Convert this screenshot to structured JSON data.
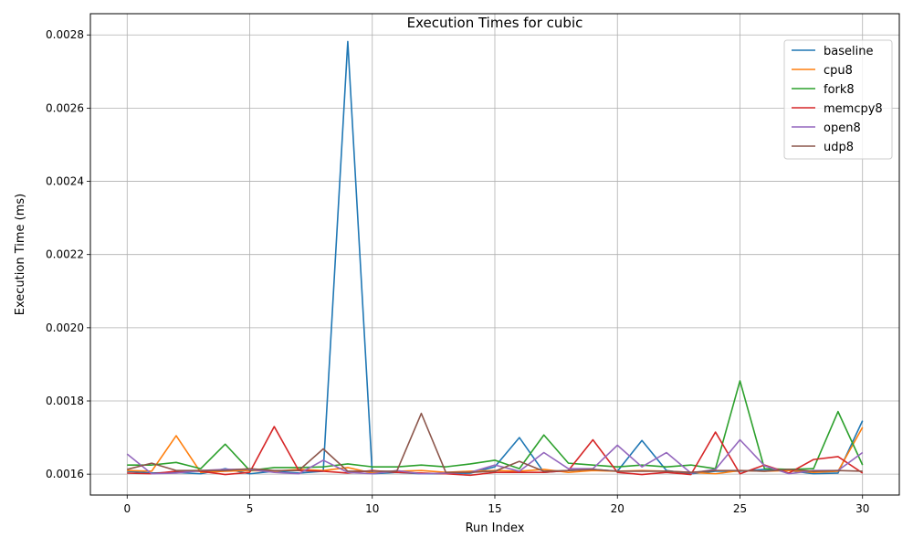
{
  "chart_data": {
    "type": "line",
    "title": "Execution Times for cubic",
    "xlabel": "Run Index",
    "ylabel": "Execution Time (ms)",
    "xlim": [
      -1.5,
      31.5
    ],
    "ylim": [
      0.001543,
      0.002858
    ],
    "xticks": [
      0,
      5,
      10,
      15,
      20,
      25,
      30
    ],
    "xtick_labels": [
      "0",
      "5",
      "10",
      "15",
      "20",
      "25",
      "30"
    ],
    "yticks": [
      0.0016,
      0.0018,
      0.002,
      0.0022,
      0.0024,
      0.0026,
      0.0028
    ],
    "ytick_labels": [
      "0.0016",
      "0.0018",
      "0.0020",
      "0.0022",
      "0.0024",
      "0.0026",
      "0.0028"
    ],
    "grid": true,
    "legend_position": "top-right",
    "x": [
      0,
      1,
      2,
      3,
      4,
      5,
      6,
      7,
      8,
      9,
      10,
      11,
      12,
      13,
      14,
      15,
      16,
      17,
      18,
      19,
      20,
      21,
      22,
      23,
      24,
      25,
      26,
      27,
      28,
      29,
      30
    ],
    "series": [
      {
        "name": "baseline",
        "color": "#1f77b4",
        "values": [
          0.001608,
          0.001603,
          0.001605,
          0.001601,
          0.001615,
          0.001601,
          0.001608,
          0.001603,
          0.001608,
          0.002782,
          0.001601,
          0.001605,
          0.001601,
          0.001601,
          0.001603,
          0.00162,
          0.0017,
          0.001605,
          0.00161,
          0.001613,
          0.001608,
          0.001692,
          0.00161,
          0.001601,
          0.001608,
          0.001608,
          0.001613,
          0.00161,
          0.001601,
          0.001603,
          0.001746
        ]
      },
      {
        "name": "cpu8",
        "color": "#ff7f0e",
        "values": [
          0.00161,
          0.001608,
          0.001705,
          0.001605,
          0.001608,
          0.00161,
          0.001608,
          0.001613,
          0.00161,
          0.001618,
          0.001603,
          0.001608,
          0.00161,
          0.001605,
          0.001608,
          0.00161,
          0.001608,
          0.001613,
          0.001605,
          0.00161,
          0.001608,
          0.00161,
          0.001608,
          0.001605,
          0.001601,
          0.00161,
          0.001608,
          0.00161,
          0.001605,
          0.001608,
          0.001728
        ]
      },
      {
        "name": "fork8",
        "color": "#2ca02c",
        "values": [
          0.001625,
          0.001625,
          0.001632,
          0.001615,
          0.001682,
          0.00161,
          0.001618,
          0.001618,
          0.00162,
          0.001628,
          0.00162,
          0.00162,
          0.001625,
          0.00162,
          0.001628,
          0.001638,
          0.001615,
          0.001707,
          0.00163,
          0.001625,
          0.00162,
          0.001625,
          0.00162,
          0.001625,
          0.001615,
          0.001855,
          0.001615,
          0.001613,
          0.001615,
          0.001771,
          0.001625
        ]
      },
      {
        "name": "memcpy8",
        "color": "#d62728",
        "values": [
          0.001603,
          0.001601,
          0.001608,
          0.001608,
          0.001599,
          0.001605,
          0.00173,
          0.00161,
          0.001608,
          0.001603,
          0.00161,
          0.001605,
          0.001603,
          0.001601,
          0.001597,
          0.001605,
          0.001605,
          0.001605,
          0.00161,
          0.001694,
          0.001605,
          0.001599,
          0.001605,
          0.001599,
          0.001715,
          0.001601,
          0.001625,
          0.001603,
          0.00164,
          0.001648,
          0.001603
        ]
      },
      {
        "name": "open8",
        "color": "#9467bd",
        "values": [
          0.001655,
          0.001601,
          0.001603,
          0.00161,
          0.001613,
          0.001613,
          0.001605,
          0.001601,
          0.001638,
          0.001605,
          0.001601,
          0.00161,
          0.001601,
          0.001603,
          0.001605,
          0.001625,
          0.001608,
          0.001659,
          0.001615,
          0.001615,
          0.001679,
          0.00162,
          0.001659,
          0.001603,
          0.001613,
          0.001694,
          0.001623,
          0.001601,
          0.00161,
          0.00161,
          0.001659
        ]
      },
      {
        "name": "udp8",
        "color": "#8c564b",
        "values": [
          0.001613,
          0.00163,
          0.00161,
          0.00161,
          0.00161,
          0.001615,
          0.00161,
          0.00161,
          0.001669,
          0.001608,
          0.001608,
          0.001608,
          0.001766,
          0.001605,
          0.001605,
          0.001608,
          0.001635,
          0.001608,
          0.00161,
          0.001613,
          0.001608,
          0.001608,
          0.001608,
          0.001605,
          0.00161,
          0.00161,
          0.001608,
          0.001613,
          0.001608,
          0.00161,
          0.001608
        ]
      }
    ]
  }
}
